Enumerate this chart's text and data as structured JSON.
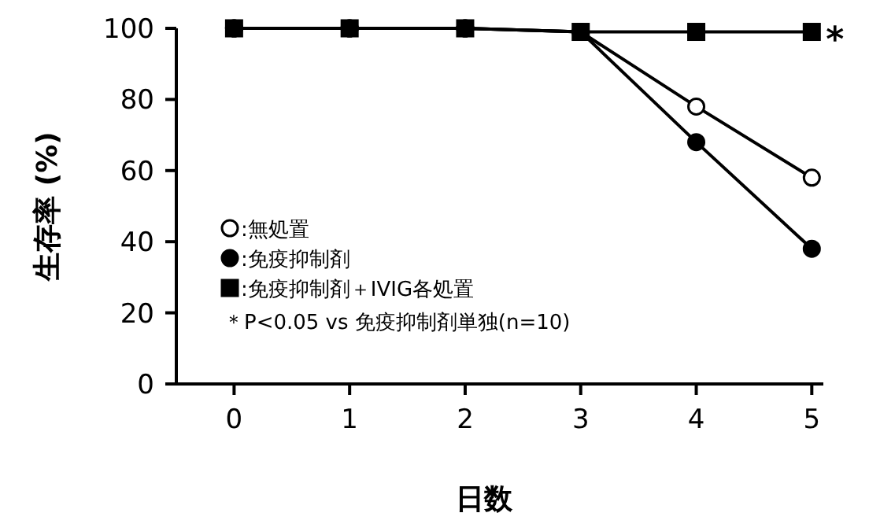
{
  "chart_data": {
    "type": "line",
    "xlabel": "日数",
    "ylabel": "生存率 (%)",
    "x": [
      0,
      1,
      2,
      3,
      4,
      5
    ],
    "series": [
      {
        "name": ":無処置",
        "color": "#000000",
        "marker": "circle-open",
        "values": [
          100,
          100,
          100,
          99,
          78,
          58
        ]
      },
      {
        "name": ":免疫抑制剤",
        "color": "#000000",
        "marker": "circle",
        "values": [
          100,
          100,
          100,
          99,
          68,
          38
        ]
      },
      {
        "name": ":免疫抑制剤＋IVIG各処置",
        "color": "#000000",
        "marker": "square",
        "values": [
          100,
          100,
          100,
          99,
          99,
          99
        ]
      }
    ],
    "annotations": [
      {
        "text": "*",
        "x": 5,
        "y": 99
      },
      "＊P<0.05  vs  免疫抑制剤単独(n=10)"
    ],
    "xlim": [
      -0.5,
      5.1
    ],
    "xticks": [
      0,
      1,
      2,
      3,
      4,
      5
    ],
    "ylim": [
      0,
      100
    ],
    "yticks": [
      0,
      20,
      40,
      60,
      80,
      100
    ],
    "grid": false,
    "legend": "left",
    "line_style": "solid"
  }
}
